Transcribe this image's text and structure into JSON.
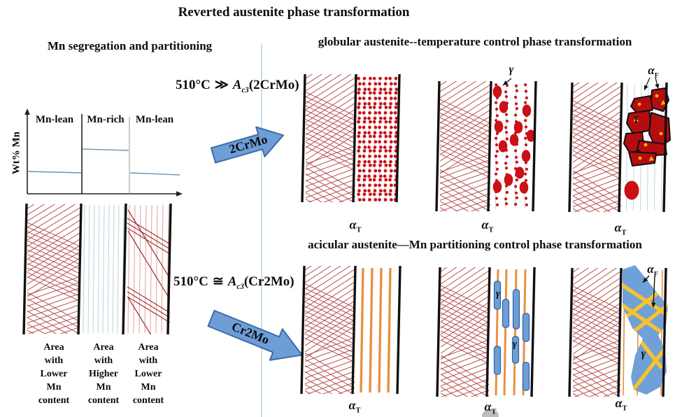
{
  "title": "Reverted austenite phase transformation",
  "headers": {
    "left": "Mn segregation and partitioning",
    "globular": "globular austenite--temperature control phase transformation",
    "acicular": "acicular austenite—Mn partitioning control phase transformation"
  },
  "equations": {
    "globular": {
      "temp": "510°C",
      "rel": "≫",
      "symbol": "A",
      "sub": "c3",
      "arg": "(2CrMo)"
    },
    "acicular": {
      "temp": "510°C",
      "rel": "≅",
      "symbol": "A",
      "sub": "c3",
      "arg": "(Cr2Mo)"
    }
  },
  "arrows": {
    "globular": "2CrMo",
    "acicular": "Cr2Mo"
  },
  "plot": {
    "ylabel": "Wt% Mn",
    "regions": [
      "Mn-lean",
      "Mn-rich",
      "Mn-lean"
    ]
  },
  "areas": [
    "Area\nwith\nLower\nMn\ncontent",
    "Area\nwith\nHigher\nMn\ncontent",
    "Area\nwith\nLower\nMn\ncontent"
  ],
  "labels": {
    "alpha_t": {
      "base": "α",
      "sub": "T"
    },
    "alpha_f": {
      "base": "α",
      "sub": "F"
    },
    "gamma": "γ"
  },
  "palette": {
    "ink": "#101010",
    "axis": "#222222",
    "hatch": "#b5514e",
    "dot": "#cb1016",
    "poly": "#b50d0f",
    "accent": "#ffaf00",
    "blueLine": "#c3d6de",
    "pinkLine": "#e2aaa8",
    "darkRed": "#a03a38",
    "orange": "#e89140",
    "particle": "#6d9ed6",
    "particleStroke": "#2f5f9e",
    "bigBlue": "#70a0d8",
    "yellow": "#f6c32e",
    "arrowFill": "#6d9ed6",
    "arrowStroke": "#3e6ca8",
    "divider": "#b9d6e2",
    "profile": "#6f94ad"
  }
}
